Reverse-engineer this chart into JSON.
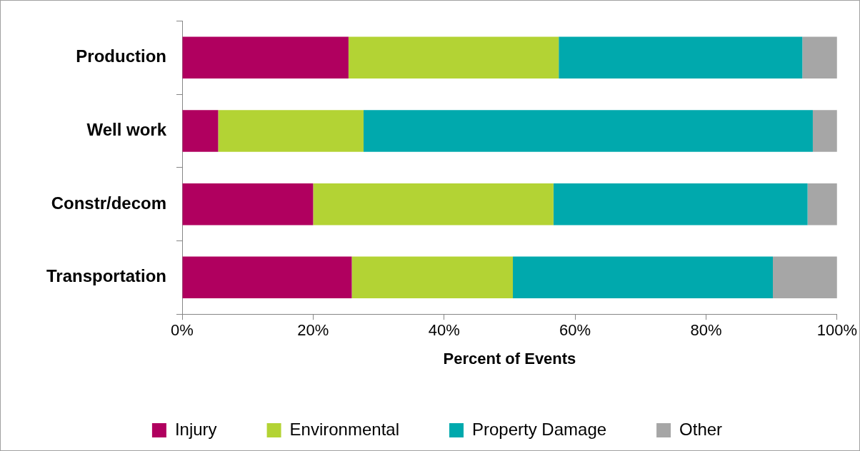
{
  "chart_data": {
    "type": "bar",
    "orientation": "horizontal",
    "stacked": true,
    "categories": [
      "Production",
      "Well work",
      "Constr/decom",
      "Transportation"
    ],
    "series": [
      {
        "name": "Injury",
        "color": "#b0005f",
        "values": [
          25.4,
          5.5,
          20.0,
          25.9
        ]
      },
      {
        "name": "Environmental",
        "color": "#b3d334",
        "values": [
          32.1,
          22.2,
          36.7,
          24.6
        ]
      },
      {
        "name": "Property Damage",
        "color": "#00a9ad",
        "values": [
          37.2,
          68.6,
          38.8,
          39.7
        ]
      },
      {
        "name": "Other",
        "color": "#a6a6a6",
        "values": [
          5.3,
          3.7,
          4.5,
          9.8
        ]
      }
    ],
    "xlim": [
      0,
      100
    ],
    "xticks": [
      {
        "value": 0,
        "label": "0%"
      },
      {
        "value": 20,
        "label": "20%"
      },
      {
        "value": 40,
        "label": "40%"
      },
      {
        "value": 60,
        "label": "60%"
      },
      {
        "value": 80,
        "label": "80%"
      },
      {
        "value": 100,
        "label": "100%"
      }
    ],
    "xlabel": "Percent of Events",
    "legend": "bottom",
    "grid": false
  }
}
